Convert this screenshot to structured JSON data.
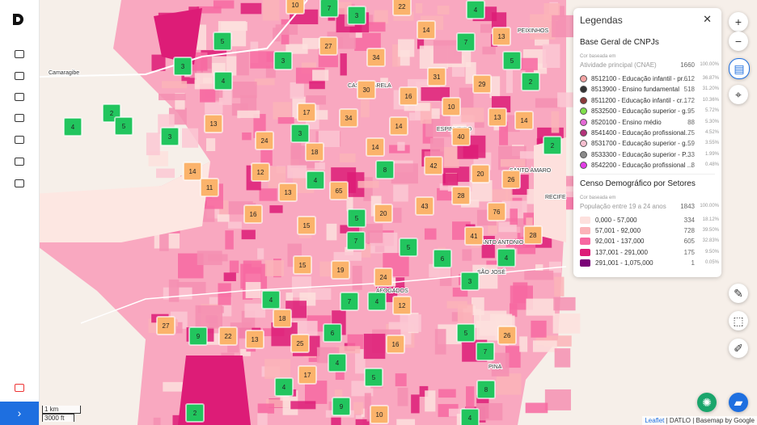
{
  "map": {
    "places": [
      "Camaragibe",
      "PEIXINHOS",
      "ESPINHEIRO",
      "SANTO AMARO",
      "RECIFE",
      "SANTO ANTONIO",
      "SÃO JOSÉ",
      "PINA",
      "AFOGADOS",
      "CASA AMARELA"
    ],
    "clusters": [
      {
        "count": 7,
        "color": "#22c55e"
      },
      {
        "count": 3,
        "color": "#22c55e"
      },
      {
        "count": 4,
        "color": "#22c55e"
      },
      {
        "count": 5,
        "color": "#22c55e"
      },
      {
        "count": 7,
        "color": "#22c55e"
      },
      {
        "count": 3,
        "color": "#22c55e"
      },
      {
        "count": 5,
        "color": "#22c55e"
      },
      {
        "count": 3,
        "color": "#22c55e"
      },
      {
        "count": 4,
        "color": "#22c55e"
      },
      {
        "count": 2,
        "color": "#22c55e"
      },
      {
        "count": 2,
        "color": "#22c55e"
      },
      {
        "count": 4,
        "color": "#22c55e"
      },
      {
        "count": 5,
        "color": "#22c55e"
      },
      {
        "count": 3,
        "color": "#22c55e"
      },
      {
        "count": 3,
        "color": "#22c55e"
      },
      {
        "count": 2,
        "color": "#22c55e"
      },
      {
        "count": 8,
        "color": "#22c55e"
      },
      {
        "count": 4,
        "color": "#22c55e"
      },
      {
        "count": 5,
        "color": "#22c55e"
      },
      {
        "count": 7,
        "color": "#22c55e"
      },
      {
        "count": 5,
        "color": "#22c55e"
      },
      {
        "count": 6,
        "color": "#22c55e"
      },
      {
        "count": 4,
        "color": "#22c55e"
      },
      {
        "count": 3,
        "color": "#22c55e"
      },
      {
        "count": 4,
        "color": "#22c55e"
      },
      {
        "count": 7,
        "color": "#22c55e"
      },
      {
        "count": 4,
        "color": "#22c55e"
      },
      {
        "count": 9,
        "color": "#22c55e"
      },
      {
        "count": 6,
        "color": "#22c55e"
      },
      {
        "count": 5,
        "color": "#22c55e"
      },
      {
        "count": 7,
        "color": "#22c55e"
      },
      {
        "count": 4,
        "color": "#22c55e"
      },
      {
        "count": 5,
        "color": "#22c55e"
      },
      {
        "count": 4,
        "color": "#22c55e"
      },
      {
        "count": 8,
        "color": "#22c55e"
      },
      {
        "count": 9,
        "color": "#22c55e"
      },
      {
        "count": 2,
        "color": "#22c55e"
      },
      {
        "count": 4,
        "color": "#22c55e"
      },
      {
        "count": 10,
        "color": "#fbb36b"
      },
      {
        "count": 22,
        "color": "#fbb36b"
      },
      {
        "count": 14,
        "color": "#fbb36b"
      },
      {
        "count": 13,
        "color": "#fbb36b"
      },
      {
        "count": 27,
        "color": "#fbb36b"
      },
      {
        "count": 34,
        "color": "#fbb36b"
      },
      {
        "count": 31,
        "color": "#fbb36b"
      },
      {
        "count": 29,
        "color": "#fbb36b"
      },
      {
        "count": 30,
        "color": "#fbb36b"
      },
      {
        "count": 16,
        "color": "#fbb36b"
      },
      {
        "count": 10,
        "color": "#fbb36b"
      },
      {
        "count": 13,
        "color": "#fbb36b"
      },
      {
        "count": 14,
        "color": "#fbb36b"
      },
      {
        "count": 17,
        "color": "#fbb36b"
      },
      {
        "count": 34,
        "color": "#fbb36b"
      },
      {
        "count": 13,
        "color": "#fbb36b"
      },
      {
        "count": 14,
        "color": "#fbb36b"
      },
      {
        "count": 40,
        "color": "#fbb36b"
      },
      {
        "count": 24,
        "color": "#fbb36b"
      },
      {
        "count": 18,
        "color": "#fbb36b"
      },
      {
        "count": 14,
        "color": "#fbb36b"
      },
      {
        "count": 42,
        "color": "#fbb36b"
      },
      {
        "count": 14,
        "color": "#fbb36b"
      },
      {
        "count": 12,
        "color": "#fbb36b"
      },
      {
        "count": 20,
        "color": "#fbb36b"
      },
      {
        "count": 26,
        "color": "#fbb36b"
      },
      {
        "count": 11,
        "color": "#fbb36b"
      },
      {
        "count": 13,
        "color": "#fbb36b"
      },
      {
        "count": 65,
        "color": "#fbb36b"
      },
      {
        "count": 28,
        "color": "#fbb36b"
      },
      {
        "count": 16,
        "color": "#fbb36b"
      },
      {
        "count": 20,
        "color": "#fbb36b"
      },
      {
        "count": 43,
        "color": "#fbb36b"
      },
      {
        "count": 76,
        "color": "#fbb36b"
      },
      {
        "count": 15,
        "color": "#fbb36b"
      },
      {
        "count": 41,
        "color": "#fbb36b"
      },
      {
        "count": 28,
        "color": "#fbb36b"
      },
      {
        "count": 15,
        "color": "#fbb36b"
      },
      {
        "count": 19,
        "color": "#fbb36b"
      },
      {
        "count": 24,
        "color": "#fbb36b"
      },
      {
        "count": 12,
        "color": "#fbb36b"
      },
      {
        "count": 18,
        "color": "#fbb36b"
      },
      {
        "count": 27,
        "color": "#fbb36b"
      },
      {
        "count": 22,
        "color": "#fbb36b"
      },
      {
        "count": 13,
        "color": "#fbb36b"
      },
      {
        "count": 25,
        "color": "#fbb36b"
      },
      {
        "count": 16,
        "color": "#fbb36b"
      },
      {
        "count": 26,
        "color": "#fbb36b"
      },
      {
        "count": 17,
        "color": "#fbb36b"
      },
      {
        "count": 10,
        "color": "#fbb36b"
      }
    ],
    "scale": [
      "1 km",
      "3000 ft"
    ],
    "attribution": {
      "link": "Leaflet",
      "rest": "| DATLO | Basemap by Google"
    }
  },
  "legend": {
    "title": "Legendas",
    "sections": [
      {
        "title": "Base Geral de CNPJs",
        "based_on": "Cor baseada em",
        "field": "Atividade principal (CNAE)",
        "total": "1660",
        "total_pct": "100.00%",
        "items": [
          {
            "label": "8512100 - Educação infantil - pr...",
            "count": "612",
            "pct": "36.87%",
            "color": "#f4a3a3"
          },
          {
            "label": "8513900 - Ensino fundamental",
            "count": "518",
            "pct": "31.20%",
            "color": "#333333"
          },
          {
            "label": "8511200 - Educação infantil - cr...",
            "count": "172",
            "pct": "10.36%",
            "color": "#8b3a3a"
          },
          {
            "label": "8532500 - Educação superior - g...",
            "count": "95",
            "pct": "5.72%",
            "color": "#7ee04a"
          },
          {
            "label": "8520100 - Ensino médio",
            "count": "88",
            "pct": "5.30%",
            "color": "#e46ad6"
          },
          {
            "label": "8541400 - Educação profissional...",
            "count": "75",
            "pct": "4.52%",
            "color": "#b3327a"
          },
          {
            "label": "8531700 - Educação superior - g...",
            "count": "59",
            "pct": "3.55%",
            "color": "#f6bfd0"
          },
          {
            "label": "8533300 - Educação superior - P...",
            "count": "33",
            "pct": "1.99%",
            "color": "#8a8a8a"
          },
          {
            "label": "8542200 - Educação profissional ...",
            "count": "8",
            "pct": "0.48%",
            "color": "#e23de6"
          }
        ]
      },
      {
        "title": "Censo Demográfico por Setores",
        "based_on": "Cor baseada em",
        "field": "População entre 19 a 24 anos",
        "total": "1843",
        "total_pct": "100.00%",
        "items": [
          {
            "label": "0,000 - 57,000",
            "count": "334",
            "pct": "18.12%",
            "color": "#fde0dd"
          },
          {
            "label": "57,001 - 92,000",
            "count": "728",
            "pct": "39.50%",
            "color": "#fbb4b9"
          },
          {
            "label": "92,001 - 137,000",
            "count": "605",
            "pct": "32.83%",
            "color": "#f768a1"
          },
          {
            "label": "137,001 - 291,000",
            "count": "175",
            "pct": "9.50%",
            "color": "#dd1c77"
          },
          {
            "label": "291,001 - 1,075,000",
            "count": "1",
            "pct": "0.05%",
            "color": "#7a0177"
          }
        ]
      }
    ]
  }
}
